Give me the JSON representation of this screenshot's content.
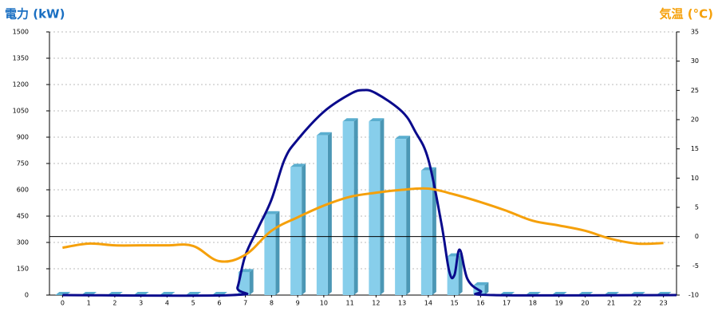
{
  "chart_data": {
    "type": "bar",
    "ylabel": "電力 (kW)",
    "y2label": "気温 (°C)",
    "x": [
      0,
      1,
      2,
      3,
      4,
      5,
      6,
      7,
      8,
      9,
      10,
      11,
      12,
      13,
      14,
      15,
      16,
      17,
      18,
      19,
      20,
      21,
      22,
      23
    ],
    "xlim": [
      -0.5,
      23.5
    ],
    "xticks": [
      0,
      1,
      2,
      3,
      4,
      5,
      6,
      7,
      8,
      9,
      10,
      11,
      12,
      13,
      14,
      15,
      16,
      17,
      18,
      19,
      20,
      21,
      22,
      23
    ],
    "ylim": [
      0,
      1500
    ],
    "yticks": [
      0,
      150,
      300,
      450,
      600,
      750,
      900,
      1050,
      1200,
      1350,
      1500
    ],
    "y2lim": [
      -10,
      35
    ],
    "y2ticks": [
      -10,
      -5,
      0,
      5,
      10,
      15,
      20,
      25,
      30,
      35
    ],
    "grid": true,
    "reference_line": {
      "axis": "y2",
      "value": 0,
      "color": "#000000"
    },
    "series": [
      {
        "type": "bar",
        "color": "#87ceeb",
        "values": [
          0,
          0,
          0,
          0,
          0,
          0,
          0,
          130,
          460,
          730,
          910,
          990,
          990,
          890,
          710,
          220,
          55,
          0,
          0,
          0,
          0,
          0,
          0,
          0
        ]
      },
      {
        "type": "line",
        "color": "#0a0a8c",
        "x": [
          0,
          6.5,
          6.7,
          7,
          7.5,
          8,
          8.5,
          9,
          10,
          11,
          11.5,
          12,
          13,
          13.5,
          14,
          14.5,
          14.8,
          15,
          15.2,
          15.5,
          16,
          16.5,
          23.5
        ],
        "values": [
          0,
          0,
          45,
          227,
          386,
          545,
          773,
          886,
          1045,
          1145,
          1168,
          1150,
          1045,
          932,
          773,
          409,
          136,
          114,
          259,
          91,
          23,
          0,
          0
        ]
      },
      {
        "type": "line",
        "color": "#f5a00a",
        "axis": "y2",
        "values": [
          -1.9,
          -1.2,
          -1.5,
          -1.5,
          -1.5,
          -1.6,
          -4.2,
          -3.1,
          1.0,
          3.3,
          5.3,
          6.8,
          7.5,
          8.0,
          8.2,
          7.2,
          5.9,
          4.4,
          2.7,
          1.9,
          1.0,
          -0.4,
          -1.2,
          -1.1
        ]
      }
    ]
  }
}
